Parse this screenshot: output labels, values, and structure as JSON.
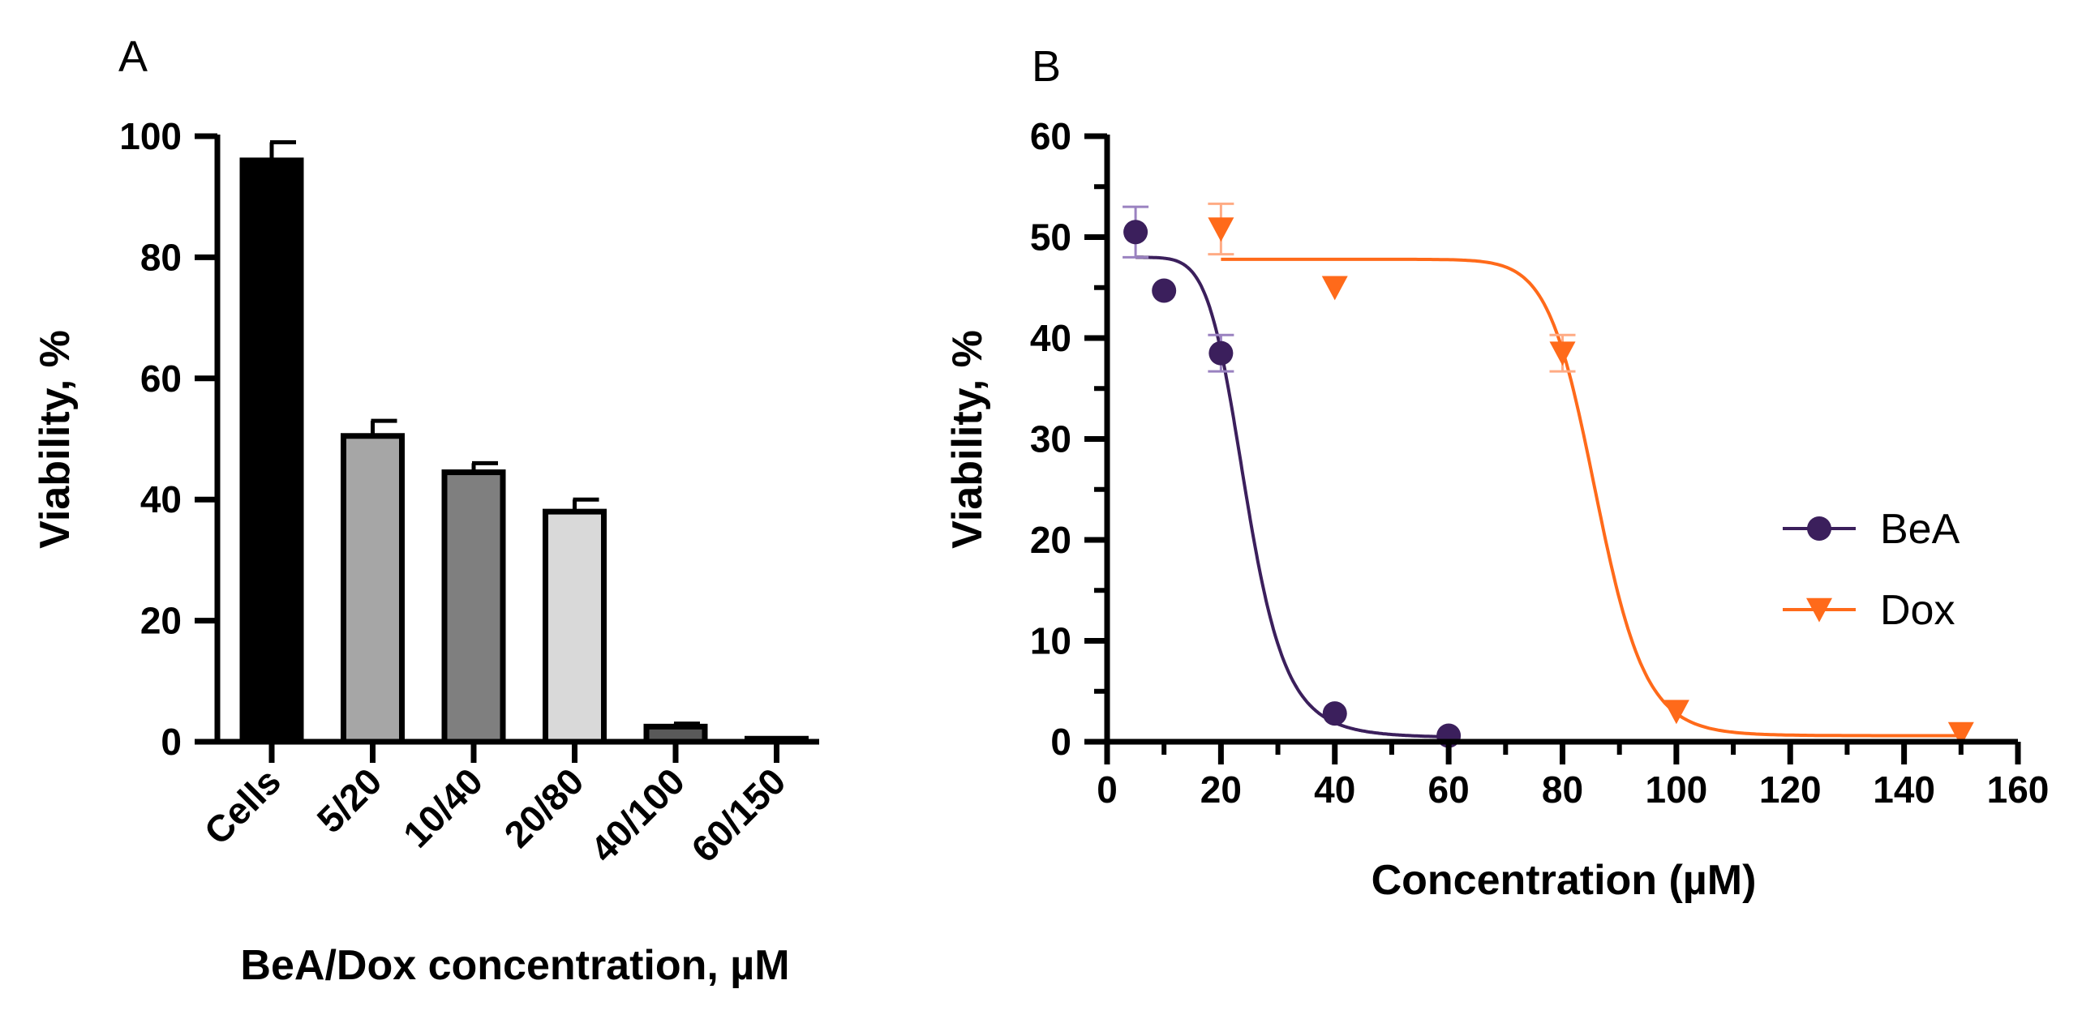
{
  "chart_data": [
    {
      "panel": "A",
      "type": "bar",
      "title": "",
      "xlabel": "BeA/Dox concentration, µM",
      "ylabel": "Viability, %",
      "ylim": [
        0,
        100
      ],
      "yticks": [
        0,
        20,
        40,
        60,
        80,
        100
      ],
      "categories": [
        "Cells",
        "5/20",
        "10/40",
        "20/80",
        "40/100",
        "60/150"
      ],
      "values": [
        96,
        50.5,
        44.5,
        38,
        2.5,
        0.5
      ],
      "errors": [
        3,
        2.5,
        1.5,
        2,
        0.5,
        0.3
      ],
      "colors": [
        "#000000",
        "#a6a6a6",
        "#7f7f7f",
        "#d9d9d9",
        "#595959",
        "#595959"
      ]
    },
    {
      "panel": "B",
      "type": "scatter",
      "title": "",
      "xlabel": "Concentration (µM)",
      "ylabel": "Viability, %",
      "xlim": [
        0,
        160
      ],
      "ylim": [
        0,
        60
      ],
      "xticks": [
        0,
        20,
        40,
        60,
        80,
        100,
        120,
        140,
        160
      ],
      "yticks": [
        0,
        10,
        20,
        30,
        40,
        50,
        60
      ],
      "legend_position": "right",
      "series": [
        {
          "name": "BeA",
          "color": "#3b1f5c",
          "marker": "circle",
          "x": [
            5,
            10,
            20,
            40,
            60
          ],
          "y": [
            50.5,
            44.7,
            38.5,
            2.8,
            0.6
          ],
          "errors": [
            2.5,
            0,
            1.8,
            0,
            0
          ],
          "fit": {
            "top": 48,
            "bottom": 0.4,
            "ic50": 24.5,
            "hill": 7
          }
        },
        {
          "name": "Dox",
          "color": "#ff6a1a",
          "marker": "triangle-down",
          "x": [
            20,
            40,
            80,
            100,
            150
          ],
          "y": [
            50.8,
            45,
            38.5,
            3,
            0.8
          ],
          "errors": [
            2.5,
            0,
            1.8,
            0,
            0
          ],
          "fit": {
            "top": 47.8,
            "bottom": 0.6,
            "ic50": 86,
            "hill": 20
          }
        }
      ]
    }
  ]
}
